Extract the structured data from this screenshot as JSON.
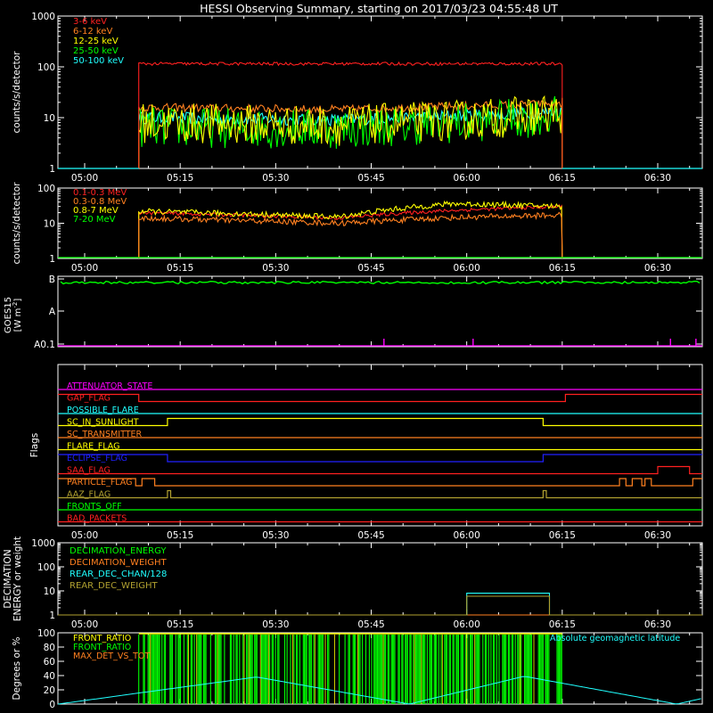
{
  "title": "HESSI Observing Summary, starting on 2017/03/23 04:55:48 UT",
  "time_axis": {
    "start": "04:55:48",
    "end": "06:37:00",
    "tick_labels": [
      "05:00",
      "05:15",
      "05:30",
      "05:45",
      "06:00",
      "06:15",
      "06:30"
    ],
    "data_window": [
      "05:08:30",
      "06:15:00"
    ]
  },
  "colors": {
    "red": "#ff2020",
    "orange": "#ff8020",
    "yellow": "#ffff00",
    "green": "#00ff00",
    "cyan": "#20ffff",
    "magenta": "#ff00ff",
    "blue": "#2020ff",
    "olive": "#b0a030",
    "white": "#ffffff"
  },
  "chart_data": [
    {
      "type": "line",
      "title": "",
      "ylabel": "counts/s/detector",
      "yscale": "log",
      "ylim": [
        1,
        1000
      ],
      "y_tick_labels": [
        "1",
        "10",
        "100",
        "1000"
      ],
      "legend_position": "top-left",
      "series": [
        {
          "name": "3-6 keV",
          "color": "#ff2020",
          "level": 115,
          "start_level": 65,
          "noise": 0.03,
          "x": [
            "05:08:30",
            "06:15:00"
          ],
          "y": [
            115,
            115
          ]
        },
        {
          "name": "6-12 keV",
          "color": "#ff8020",
          "level": 15,
          "noise": 0.08,
          "x": [
            "05:08:30",
            "05:40",
            "06:00",
            "06:15:00"
          ],
          "y": [
            16,
            14.5,
            17,
            19
          ]
        },
        {
          "name": "12-25 keV",
          "color": "#ffff00",
          "level": 9,
          "noise": 0.25,
          "x": [
            "05:08:30",
            "05:40",
            "06:00",
            "06:15:00"
          ],
          "y": [
            8,
            7,
            9,
            12
          ]
        },
        {
          "name": "25-50 keV",
          "color": "#00ff00",
          "level": 7,
          "noise": 0.25,
          "x": [
            "05:08:30",
            "05:40",
            "06:00",
            "06:15:00"
          ],
          "y": [
            6.5,
            6,
            8,
            11
          ]
        },
        {
          "name": "50-100 keV",
          "color": "#20ffff",
          "level": 10,
          "noise": 0.12,
          "x": [
            "05:08:30",
            "05:40",
            "06:00",
            "06:15:00"
          ],
          "y": [
            10,
            9,
            11,
            13
          ]
        }
      ]
    },
    {
      "type": "line",
      "title": "",
      "ylabel": "counts/s/detector",
      "yscale": "log",
      "ylim": [
        1,
        100
      ],
      "y_tick_labels": [
        "1",
        "10",
        "100"
      ],
      "legend_position": "top-left",
      "series": [
        {
          "name": "0.1-0.3 MeV",
          "color": "#ff2020",
          "noise": 0.05,
          "x": [
            "05:08:30",
            "05:40",
            "05:55",
            "06:15:00"
          ],
          "y": [
            20,
            14,
            22,
            30
          ]
        },
        {
          "name": "0.3-0.8 MeV",
          "color": "#ff8020",
          "noise": 0.08,
          "x": [
            "05:08:30",
            "05:40",
            "06:00",
            "06:15:00"
          ],
          "y": [
            14,
            10,
            15,
            17
          ]
        },
        {
          "name": "0.8-7 MeV",
          "color": "#ffff00",
          "noise": 0.08,
          "x": [
            "05:08:30",
            "05:40",
            "05:58",
            "06:15:00"
          ],
          "y": [
            22,
            15,
            36,
            30
          ]
        },
        {
          "name": "7-20 MeV",
          "color": "#00ff00",
          "noise": 0,
          "x": [
            "04:55:48",
            "06:37:00"
          ],
          "y": [
            1,
            1
          ]
        }
      ]
    },
    {
      "type": "line",
      "title": "",
      "ylabel": "GOES15",
      "ylabel2": "[W m",
      "ylabel_sup": "-2",
      "ylabel_end": "]",
      "yscale": "log",
      "ylim": [
        "A0.1",
        "B"
      ],
      "y_tick_labels": [
        "A0.1",
        "A",
        "B"
      ],
      "series": [
        {
          "name": "",
          "color": "#00ff00",
          "level": "B",
          "noise": 0.02
        },
        {
          "name": "",
          "color": "#ff00ff",
          "level": "A0.1",
          "spikes": [
            "05:47",
            "06:01",
            "06:32",
            "06:36"
          ]
        }
      ]
    },
    {
      "type": "table",
      "title": "",
      "ylabel": "Flags",
      "flags": [
        {
          "name": "ATTENUATOR_STATE",
          "color": "#ff00ff",
          "segments": [
            [
              "04:55:48",
              "06:37:00",
              0
            ]
          ]
        },
        {
          "name": "GAP_FLAG",
          "color": "#ff2020",
          "segments": [
            [
              "04:55:48",
              "05:08:30",
              1
            ],
            [
              "05:08:30",
              "06:15:30",
              0
            ],
            [
              "06:15:30",
              "06:37:00",
              1
            ]
          ]
        },
        {
          "name": "POSSIBLE_FLARE",
          "color": "#20ffff",
          "segments": [
            [
              "04:55:48",
              "06:37:00",
              0
            ]
          ]
        },
        {
          "name": "SC_IN_SUNLIGHT",
          "color": "#ffff00",
          "segments": [
            [
              "04:55:48",
              "05:13:00",
              0
            ],
            [
              "05:13:00",
              "06:12:00",
              1
            ],
            [
              "06:12:00",
              "06:37:00",
              0
            ]
          ]
        },
        {
          "name": "SC_TRANSMITTER",
          "color": "#ff8020",
          "segments": [
            [
              "04:55:48",
              "06:37:00",
              0
            ]
          ]
        },
        {
          "name": "FLARE_FLAG",
          "color": "#ffff00",
          "segments": [
            [
              "04:55:48",
              "06:37:00",
              0
            ]
          ]
        },
        {
          "name": "ECLIPSE_FLAG",
          "color": "#2020ff",
          "segments": [
            [
              "04:55:48",
              "05:13:00",
              1
            ],
            [
              "05:13:00",
              "06:12:00",
              0
            ],
            [
              "06:12:00",
              "06:37:00",
              1
            ]
          ]
        },
        {
          "name": "SAA_FLAG",
          "color": "#ff2020",
          "segments": [
            [
              "04:55:48",
              "06:30:00",
              0
            ],
            [
              "06:30:00",
              "06:35:00",
              1
            ],
            [
              "06:35:00",
              "06:37:00",
              0
            ]
          ]
        },
        {
          "name": "PARTICLE_FLAG",
          "color": "#ff8020",
          "segments": [
            [
              "04:55:48",
              "05:08:00",
              1
            ],
            [
              "05:08:00",
              "05:09:00",
              0
            ],
            [
              "05:09:00",
              "05:11:00",
              1
            ],
            [
              "05:11:00",
              "06:24:00",
              0
            ],
            [
              "06:24:00",
              "06:25:00",
              1
            ],
            [
              "06:25:00",
              "06:26:00",
              0
            ],
            [
              "06:26:00",
              "06:27:30",
              1
            ],
            [
              "06:27:30",
              "06:28:00",
              0
            ],
            [
              "06:28:00",
              "06:29:00",
              1
            ],
            [
              "06:29:00",
              "06:35:30",
              0
            ],
            [
              "06:35:30",
              "06:37:00",
              1
            ]
          ]
        },
        {
          "name": "AAZ_FLAG",
          "color": "#b0a030",
          "segments": [
            [
              "04:55:48",
              "05:13:00",
              0
            ],
            [
              "05:13:00",
              "05:13:30",
              1
            ],
            [
              "05:13:30",
              "06:12:00",
              0
            ],
            [
              "06:12:00",
              "06:12:30",
              1
            ],
            [
              "06:12:30",
              "06:37:00",
              0
            ]
          ]
        },
        {
          "name": "FRONTS_OFF",
          "color": "#00ff00",
          "segments": [
            [
              "04:55:48",
              "06:37:00",
              0
            ]
          ]
        },
        {
          "name": "BAD_PACKETS",
          "color": "#ff2020",
          "segments": [
            [
              "04:55:48",
              "06:37:00",
              0
            ]
          ]
        }
      ]
    },
    {
      "type": "line",
      "title": "",
      "ylabel": "DECIMATION",
      "ylabel2": "ENERGY or weight",
      "yscale": "log",
      "ylim": [
        1,
        1000
      ],
      "y_tick_labels": [
        "1",
        "10",
        "100",
        "1000"
      ],
      "legend_position": "top-left",
      "series": [
        {
          "name": "DECIMATION_ENERGY",
          "color": "#00ff00",
          "x": [
            "04:55:48",
            "06:37:00"
          ],
          "y": [
            1,
            1
          ]
        },
        {
          "name": "DECIMATION_WEIGHT",
          "color": "#ff8020",
          "x": [
            "04:55:48",
            "06:37:00"
          ],
          "y": [
            1,
            1
          ]
        },
        {
          "name": "REAR_DEC_CHAN/128",
          "color": "#20ffff",
          "x": [
            "04:55:48",
            "06:00:00",
            "06:00:00",
            "06:13:00",
            "06:13:00",
            "06:37:00"
          ],
          "y": [
            1,
            1,
            8,
            8,
            1,
            1
          ]
        },
        {
          "name": "REAR_DEC_WEIGHT",
          "color": "#b0a030",
          "x": [
            "04:55:48",
            "06:00:00",
            "06:00:00",
            "06:13:00",
            "06:13:00",
            "06:37:00"
          ],
          "y": [
            1,
            1,
            6,
            6,
            1,
            1
          ]
        }
      ]
    },
    {
      "type": "line",
      "title": "",
      "ylabel": "Degrees or %",
      "yscale": "linear",
      "ylim": [
        0,
        100
      ],
      "y_tick_labels": [
        "0",
        "20",
        "40",
        "60",
        "80",
        "100"
      ],
      "legend_position": "top-left",
      "annotation": "Absolute geomagnetic latitude",
      "series": [
        {
          "name": "FRONT_RATIO",
          "color": "#ffff00"
        },
        {
          "name": "FRONT_RATIO",
          "color": "#00ff00",
          "x_range": [
            "05:08:30",
            "06:15:00"
          ]
        },
        {
          "name": "MAX_DET_VS_TOT",
          "color": "#ff8020"
        },
        {
          "name": "Absolute geomagnetic latitude",
          "color": "#20ffff",
          "x": [
            "04:55:48",
            "05:27:00",
            "05:51:00",
            "06:09:00",
            "06:33:00",
            "06:37:00"
          ],
          "y": [
            0,
            38,
            0,
            39,
            0,
            8
          ]
        }
      ]
    }
  ]
}
